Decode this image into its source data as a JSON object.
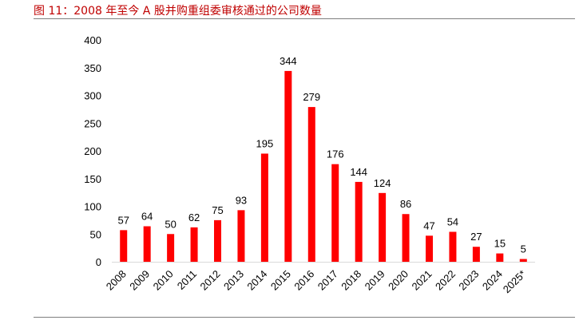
{
  "title": "图 11：2008 年至今 A 股并购重组委审核通过的公司数量",
  "colors": {
    "bar": "#ff0000",
    "title": "#c00000",
    "rule": "#7f7f7f"
  },
  "chart_data": {
    "type": "bar",
    "title": "",
    "xlabel": "",
    "ylabel": "",
    "categories": [
      "2008",
      "2009",
      "2010",
      "2011",
      "2012",
      "2013",
      "2014",
      "2015",
      "2016",
      "2017",
      "2018",
      "2019",
      "2020",
      "2021",
      "2022",
      "2023",
      "2024",
      "2025*"
    ],
    "values": [
      57,
      64,
      50,
      62,
      75,
      93,
      195,
      344,
      279,
      176,
      144,
      124,
      86,
      47,
      54,
      27,
      15,
      5
    ],
    "yticks": [
      0,
      50,
      100,
      150,
      200,
      250,
      300,
      350,
      400
    ],
    "ylim": [
      0,
      400
    ],
    "grid": false,
    "legend": "none",
    "data_labels": true
  }
}
